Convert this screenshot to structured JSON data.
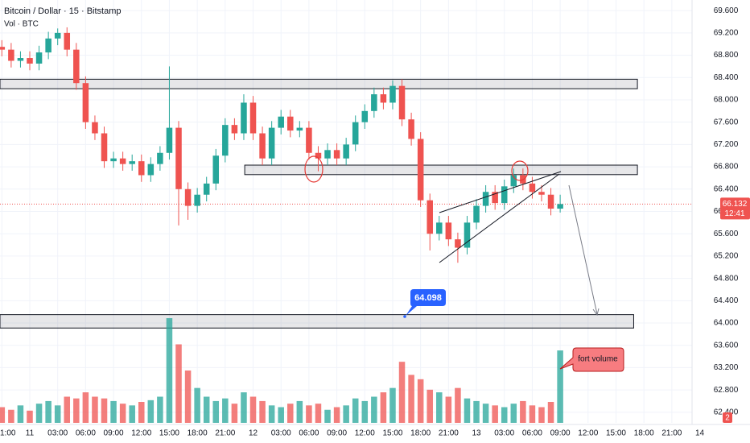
{
  "chart_data": {
    "type": "candlestick",
    "title": "Bitcoin / Dollar · 15 · Bitstamp",
    "subtitle": "Vol · BTC",
    "x": [
      -3,
      -2,
      -1,
      0,
      1,
      2,
      3,
      4,
      5,
      6,
      7,
      8,
      9,
      10,
      11,
      12,
      13,
      14,
      15,
      16,
      17,
      18,
      19,
      20,
      21,
      22,
      23,
      24,
      25,
      26,
      27,
      28,
      29,
      30,
      31,
      32,
      33,
      34,
      35,
      36,
      37,
      38,
      39,
      40,
      41,
      42,
      43,
      44,
      45,
      46,
      47,
      48,
      49,
      50,
      51,
      52,
      53,
      54,
      55,
      56,
      57
    ],
    "open": [
      68.95,
      68.9,
      68.7,
      68.75,
      68.65,
      68.85,
      69.1,
      69.2,
      68.9,
      68.3,
      67.6,
      67.4,
      66.9,
      66.95,
      66.85,
      66.9,
      66.65,
      66.85,
      67.05,
      67.5,
      66.4,
      66.1,
      66.3,
      66.5,
      67.0,
      67.55,
      67.4,
      67.95,
      67.4,
      66.95,
      67.5,
      67.7,
      67.45,
      67.5,
      67.05,
      66.95,
      67.1,
      66.95,
      67.2,
      67.6,
      67.8,
      68.1,
      67.95,
      68.25,
      67.65,
      67.3,
      66.2,
      65.6,
      65.8,
      65.5,
      65.35,
      65.8,
      66.1,
      66.35,
      66.15,
      66.45,
      66.65,
      66.5,
      66.35,
      66.3,
      66.05
    ],
    "high": [
      69.07,
      69.02,
      68.87,
      68.87,
      68.97,
      69.22,
      69.28,
      69.3,
      69.02,
      68.42,
      67.72,
      67.52,
      67.07,
      67.07,
      67.02,
      67.02,
      66.97,
      67.17,
      68.6,
      67.62,
      66.52,
      66.42,
      66.62,
      67.12,
      67.67,
      67.67,
      68.1,
      68.07,
      67.52,
      67.62,
      67.82,
      67.82,
      67.62,
      67.62,
      67.17,
      67.22,
      67.22,
      67.32,
      67.72,
      67.92,
      68.22,
      68.22,
      68.35,
      68.37,
      67.77,
      67.42,
      66.32,
      65.92,
      65.92,
      65.62,
      65.92,
      66.22,
      66.47,
      66.47,
      66.57,
      66.77,
      66.77,
      66.62,
      66.47,
      66.42,
      66.3
    ],
    "low": [
      68.78,
      68.58,
      68.58,
      68.53,
      68.53,
      68.73,
      68.98,
      68.78,
      68.18,
      67.48,
      67.28,
      66.78,
      66.78,
      66.73,
      66.73,
      66.53,
      66.53,
      66.73,
      66.93,
      65.75,
      65.85,
      65.98,
      66.18,
      66.38,
      66.88,
      67.28,
      67.28,
      67.28,
      66.83,
      66.83,
      67.38,
      67.33,
      67.33,
      66.93,
      66.72,
      66.83,
      66.83,
      66.83,
      67.08,
      67.48,
      67.68,
      67.83,
      67.83,
      67.53,
      67.18,
      66.08,
      65.3,
      65.48,
      65.38,
      65.08,
      65.23,
      65.68,
      65.98,
      66.03,
      66.03,
      66.33,
      66.38,
      66.23,
      66.18,
      65.93,
      65.98
    ],
    "close": [
      68.9,
      68.7,
      68.75,
      68.65,
      68.85,
      69.1,
      69.2,
      68.9,
      68.3,
      67.6,
      67.4,
      66.9,
      66.95,
      66.85,
      66.9,
      66.65,
      66.85,
      67.05,
      67.5,
      66.4,
      66.1,
      66.3,
      66.5,
      67.0,
      67.55,
      67.4,
      67.95,
      67.4,
      66.95,
      67.5,
      67.7,
      67.45,
      67.5,
      67.05,
      66.95,
      67.1,
      66.95,
      67.2,
      67.6,
      67.8,
      68.1,
      67.95,
      68.25,
      67.65,
      67.3,
      66.2,
      65.6,
      65.8,
      65.5,
      65.35,
      65.8,
      66.1,
      66.35,
      66.15,
      66.45,
      66.65,
      66.5,
      66.35,
      66.3,
      66.05,
      66.132
    ],
    "volume": [
      18,
      15,
      20,
      14,
      22,
      25,
      20,
      30,
      28,
      35,
      30,
      28,
      25,
      22,
      20,
      24,
      26,
      30,
      120,
      90,
      60,
      40,
      30,
      25,
      28,
      22,
      35,
      30,
      25,
      20,
      18,
      22,
      25,
      20,
      22,
      15,
      18,
      20,
      28,
      25,
      30,
      35,
      40,
      70,
      55,
      50,
      38,
      35,
      30,
      40,
      28,
      25,
      22,
      20,
      18,
      22,
      25,
      20,
      18,
      24,
      83
    ],
    "up_color": "#26a69a",
    "down_color": "#ef5350",
    "xlim": [
      -3.2,
      77.4
    ],
    "xticks": [
      {
        "value": -3,
        "label": "1:00"
      },
      {
        "value": 0,
        "label": "11"
      },
      {
        "value": 3,
        "label": "03:00"
      },
      {
        "value": 6,
        "label": "06:00"
      },
      {
        "value": 9,
        "label": "09:00"
      },
      {
        "value": 12,
        "label": "12:00"
      },
      {
        "value": 15,
        "label": "15:00"
      },
      {
        "value": 18,
        "label": "18:00"
      },
      {
        "value": 21,
        "label": "21:00"
      },
      {
        "value": 24,
        "label": "12"
      },
      {
        "value": 27,
        "label": "03:00"
      },
      {
        "value": 30,
        "label": "06:00"
      },
      {
        "value": 33,
        "label": "09:00"
      },
      {
        "value": 36,
        "label": "12:00"
      },
      {
        "value": 39,
        "label": "15:00"
      },
      {
        "value": 42,
        "label": "18:00"
      },
      {
        "value": 45,
        "label": "21:00"
      },
      {
        "value": 48,
        "label": "13"
      },
      {
        "value": 51,
        "label": "03:00"
      },
      {
        "value": 54,
        "label": "06:00"
      },
      {
        "value": 57,
        "label": "09:00"
      },
      {
        "value": 60,
        "label": "12:00"
      },
      {
        "value": 63,
        "label": "15:00"
      },
      {
        "value": 66,
        "label": "18:00"
      },
      {
        "value": 69,
        "label": "21:00"
      },
      {
        "value": 72,
        "label": "14"
      }
    ],
    "ylim": [
      62.21,
      69.79
    ],
    "yticks": [
      {
        "value": 69.6,
        "label": "69.600"
      },
      {
        "value": 69.2,
        "label": "69.200"
      },
      {
        "value": 68.8,
        "label": "68.800"
      },
      {
        "value": 68.4,
        "label": "68.400"
      },
      {
        "value": 68.0,
        "label": "68.000"
      },
      {
        "value": 67.6,
        "label": "67.600"
      },
      {
        "value": 67.2,
        "label": "67.200"
      },
      {
        "value": 66.8,
        "label": "66.800"
      },
      {
        "value": 66.4,
        "label": "66.400"
      },
      {
        "value": 66.0,
        "label": "66.000"
      },
      {
        "value": 65.6,
        "label": "65.600"
      },
      {
        "value": 65.2,
        "label": "65.200"
      },
      {
        "value": 64.8,
        "label": "64.800"
      },
      {
        "value": 64.4,
        "label": "64.400"
      },
      {
        "value": 64.0,
        "label": "64.000"
      },
      {
        "value": 63.6,
        "label": "63.600"
      },
      {
        "value": 63.2,
        "label": "63.200"
      },
      {
        "value": 62.8,
        "label": "62.800"
      },
      {
        "value": 62.4,
        "label": "62.400"
      }
    ],
    "grid": true,
    "last_price": 66.132,
    "countdown": "12:41",
    "volume_tag": "2",
    "zones": [
      {
        "low": 68.2,
        "high": 68.37,
        "x": [
          -3.2,
          65.3
        ]
      },
      {
        "low": 66.66,
        "high": 66.83,
        "x": [
          23.1,
          65.3
        ]
      },
      {
        "low": 63.91,
        "high": 64.15,
        "x": [
          -3.2,
          64.9
        ]
      }
    ],
    "annotations": [
      "64.098",
      "fort volume"
    ]
  }
}
